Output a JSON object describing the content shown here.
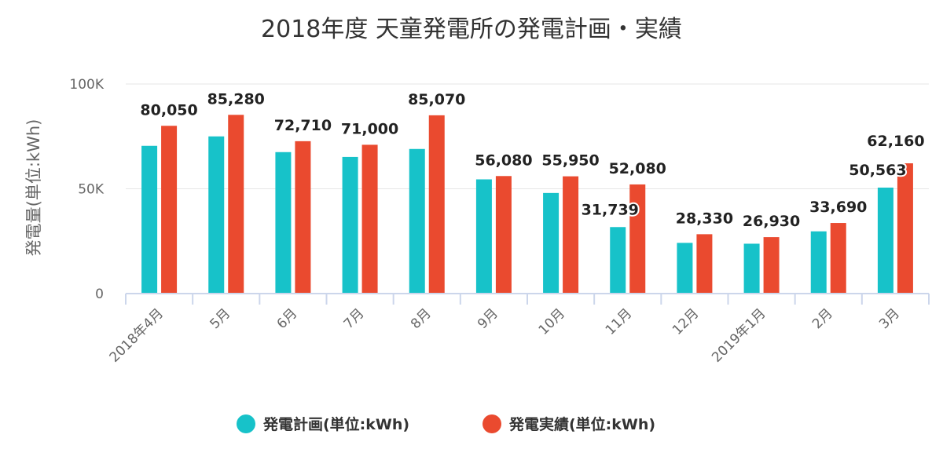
{
  "chart_data": {
    "type": "bar",
    "title": "2018年度 天童発電所の発電計画・実績",
    "ylabel": "発電量(単位:kWh)",
    "xlabel": "",
    "ylim": [
      0,
      100000
    ],
    "yticks": [
      {
        "value": 0,
        "label": "0"
      },
      {
        "value": 50000,
        "label": "50K"
      },
      {
        "value": 100000,
        "label": "100K"
      }
    ],
    "grid": true,
    "legend_position": "bottom",
    "categories": [
      "2018年4月",
      "5月",
      "6月",
      "7月",
      "8月",
      "9月",
      "10月",
      "11月",
      "12月",
      "2019年1月",
      "2月",
      "3月"
    ],
    "series": [
      {
        "name": "発電計画(単位:kWh)",
        "color": "#17c2c9",
        "values": [
          70500,
          75000,
          67500,
          65200,
          69000,
          54500,
          48000,
          31739,
          24200,
          23800,
          29700,
          50563
        ],
        "labels": [
          "",
          "",
          "",
          "",
          "",
          "",
          "",
          "31,739",
          "",
          "",
          "",
          "50,563"
        ]
      },
      {
        "name": "発電実績(単位:kWh)",
        "color": "#ea4a2f",
        "values": [
          80050,
          85280,
          72710,
          71000,
          85070,
          56080,
          55950,
          52080,
          28330,
          26930,
          33690,
          62160
        ],
        "labels": [
          "80,050",
          "85,280",
          "72,710",
          "71,000",
          "85,070",
          "56,080",
          "55,950",
          "52,080",
          "28,330",
          "26,930",
          "33,690",
          "62,160"
        ]
      }
    ]
  }
}
